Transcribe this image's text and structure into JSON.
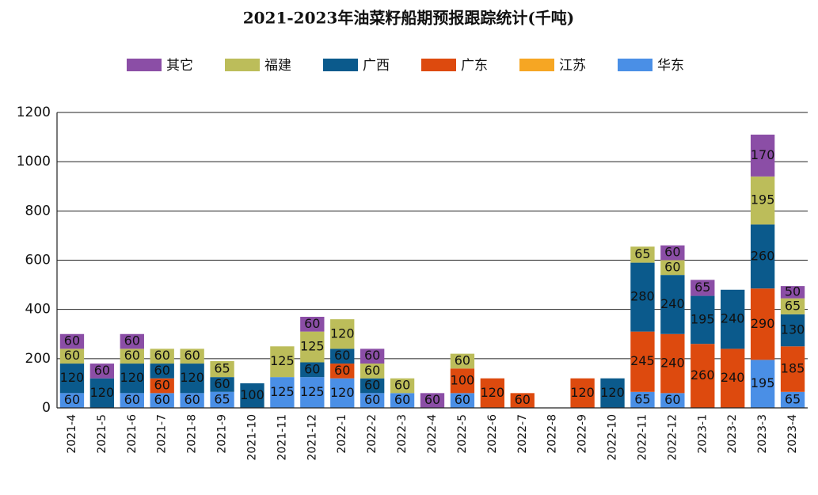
{
  "chart_data": {
    "type": "stacked_bar",
    "title": "2021-2023年油菜籽船期预报跟踪统计(千吨)",
    "categories": [
      "2021-4",
      "2021-5",
      "2021-6",
      "2021-7",
      "2021-8",
      "2021-9",
      "2021-10",
      "2021-11",
      "2021-12",
      "2022-1",
      "2022-2",
      "2022-3",
      "2022-4",
      "2022-5",
      "2022-6",
      "2022-7",
      "2022-8",
      "2022-9",
      "2022-10",
      "2022-11",
      "2022-12",
      "2023-1",
      "2023-2",
      "2023-3",
      "2023-4"
    ],
    "series": [
      {
        "name": "其它",
        "color": "#8b4ea6",
        "values": [
          60,
          60,
          60,
          null,
          null,
          null,
          null,
          null,
          60,
          null,
          60,
          null,
          60,
          null,
          null,
          null,
          null,
          null,
          null,
          null,
          60,
          65,
          null,
          170,
          50
        ]
      },
      {
        "name": "福建",
        "color": "#bcbd5a",
        "values": [
          60,
          null,
          60,
          60,
          60,
          65,
          null,
          125,
          125,
          120,
          60,
          60,
          null,
          60,
          null,
          null,
          null,
          null,
          null,
          65,
          60,
          null,
          null,
          195,
          65
        ]
      },
      {
        "name": "广西",
        "color": "#0b5a8c",
        "values": [
          120,
          120,
          120,
          60,
          120,
          60,
          100,
          null,
          60,
          60,
          60,
          null,
          null,
          null,
          null,
          null,
          null,
          null,
          120,
          280,
          240,
          195,
          240,
          260,
          130
        ]
      },
      {
        "name": "广东",
        "color": "#dd4a0e",
        "values": [
          null,
          null,
          null,
          60,
          null,
          null,
          null,
          null,
          null,
          60,
          null,
          null,
          null,
          100,
          120,
          60,
          null,
          120,
          null,
          245,
          240,
          260,
          240,
          290,
          185
        ]
      },
      {
        "name": "江苏",
        "color": "#f6a623",
        "values": [
          null,
          null,
          null,
          null,
          null,
          null,
          null,
          null,
          null,
          null,
          null,
          null,
          null,
          null,
          null,
          null,
          null,
          null,
          null,
          null,
          null,
          null,
          null,
          null,
          null
        ]
      },
      {
        "name": "华东",
        "color": "#4a8fe6",
        "values": [
          60,
          null,
          60,
          60,
          60,
          65,
          null,
          125,
          125,
          120,
          60,
          60,
          null,
          60,
          null,
          null,
          null,
          null,
          null,
          65,
          60,
          null,
          null,
          195,
          65
        ]
      }
    ],
    "ylim": [
      0,
      1200
    ],
    "yticks": [
      0,
      200,
      400,
      600,
      800,
      1000,
      1200
    ],
    "grid": true,
    "legend": "top"
  }
}
